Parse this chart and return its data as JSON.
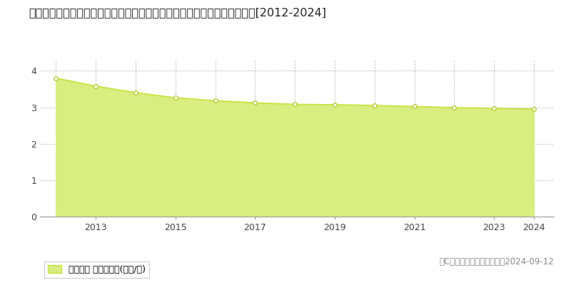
{
  "title": "青森県北津軽郡鶴田町大字鶴田字鷹ノ尾６８番１７　地価公示　地価推移[2012-2024]",
  "years": [
    2012,
    2013,
    2014,
    2015,
    2016,
    2017,
    2018,
    2019,
    2020,
    2021,
    2022,
    2023,
    2024
  ],
  "values": [
    3.8,
    3.58,
    3.4,
    3.26,
    3.18,
    3.12,
    3.08,
    3.07,
    3.05,
    3.02,
    2.99,
    2.97,
    2.95
  ],
  "line_color": "#c8e03a",
  "fill_color": "#d8ee80",
  "marker_face": "#ffffff",
  "marker_edge": "#b8cc30",
  "background_color": "#ffffff",
  "grid_color_h": "#bbbbbb",
  "grid_color_v": "#aaaaaa",
  "yticks": [
    0,
    1,
    2,
    3,
    4
  ],
  "ylim": [
    0,
    4.3
  ],
  "xlim": [
    2011.6,
    2024.5
  ],
  "legend_label": "地価公示 平均坂単価(万円/坂)",
  "copyright_text": "（C）土地価格ドットコム　2024-09-12",
  "title_fontsize": 11.5,
  "legend_fontsize": 9,
  "copyright_fontsize": 8.5,
  "tick_fontsize": 9
}
